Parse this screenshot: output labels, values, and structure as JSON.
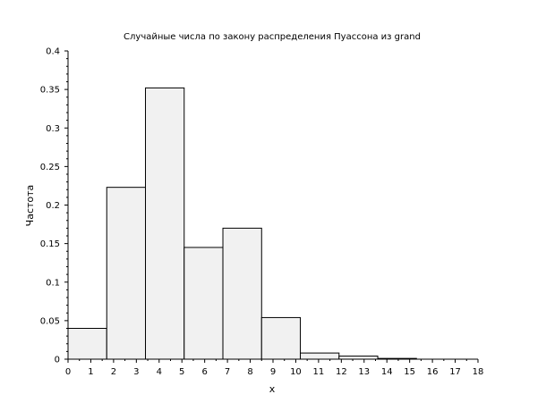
{
  "chart_data": {
    "type": "bar",
    "title": "Случайные числа по закону распределения Пуассона из grand",
    "xlabel": "x",
    "ylabel": "Частота",
    "xlim": [
      0,
      18
    ],
    "ylim": [
      0,
      0.4
    ],
    "x_ticks": [
      "0",
      "1",
      "2",
      "3",
      "4",
      "5",
      "6",
      "7",
      "8",
      "9",
      "10",
      "11",
      "12",
      "13",
      "14",
      "15",
      "16",
      "17",
      "18"
    ],
    "y_ticks": [
      "0",
      "0.05",
      "0.1",
      "0.15",
      "0.2",
      "0.25",
      "0.3",
      "0.35",
      "0.4"
    ],
    "bins": [
      {
        "start": 0.0,
        "end": 1.7,
        "value": 0.04
      },
      {
        "start": 1.7,
        "end": 3.4,
        "value": 0.223
      },
      {
        "start": 3.4,
        "end": 5.1,
        "value": 0.352
      },
      {
        "start": 5.1,
        "end": 6.8,
        "value": 0.145
      },
      {
        "start": 6.8,
        "end": 8.5,
        "value": 0.17
      },
      {
        "start": 8.5,
        "end": 10.2,
        "value": 0.054
      },
      {
        "start": 10.2,
        "end": 11.9,
        "value": 0.008
      },
      {
        "start": 11.9,
        "end": 13.6,
        "value": 0.004
      },
      {
        "start": 13.6,
        "end": 15.3,
        "value": 0.001
      }
    ],
    "bar_fill": "#f1f1f1",
    "bar_stroke": "#000000",
    "grid": false,
    "legend": "none"
  }
}
